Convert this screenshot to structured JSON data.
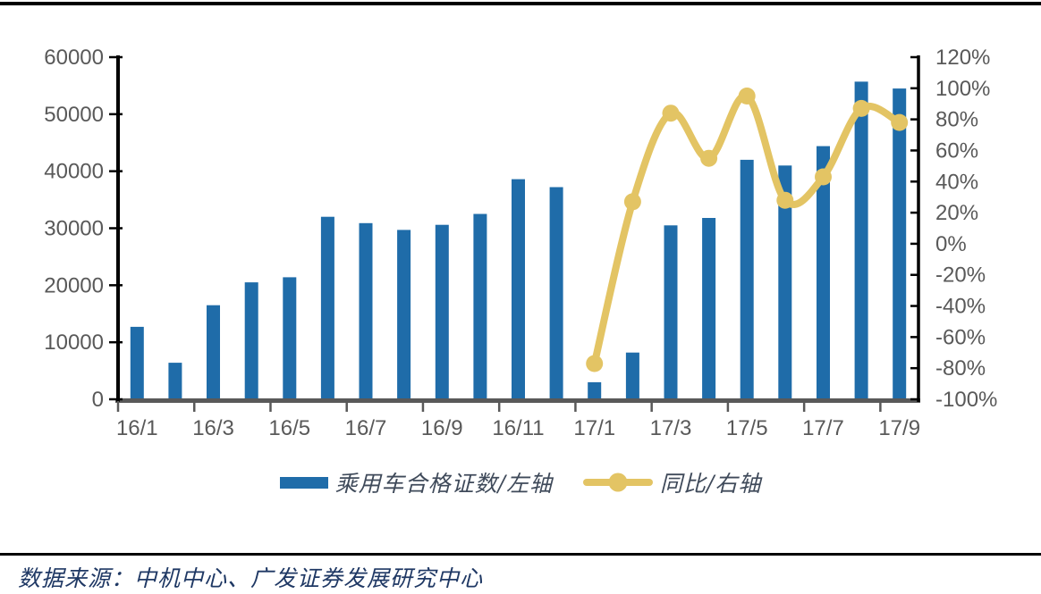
{
  "chart_data": {
    "type": "combo_bar_line",
    "categories": [
      "16/1",
      "16/2",
      "16/3",
      "16/4",
      "16/5",
      "16/6",
      "16/7",
      "16/8",
      "16/9",
      "16/10",
      "16/11",
      "16/12",
      "17/1",
      "17/2",
      "17/3",
      "17/4",
      "17/5",
      "17/6",
      "17/7",
      "17/8",
      "17/9"
    ],
    "x_axis": {
      "label_every": 2,
      "tick_every": 2
    },
    "series": [
      {
        "name": "乘用车合格证数/左轴",
        "type": "bar",
        "yaxis": "left",
        "color": "#1F6CA9",
        "values": [
          12700,
          6400,
          16500,
          20500,
          21400,
          32000,
          30900,
          29700,
          30600,
          32500,
          38600,
          37200,
          3000,
          8200,
          30500,
          31800,
          42000,
          41000,
          44400,
          55700,
          54500
        ]
      },
      {
        "name": "同比/右轴",
        "type": "line",
        "yaxis": "right",
        "unit": "%",
        "color": "#E3C464",
        "values": [
          null,
          null,
          null,
          null,
          null,
          null,
          null,
          null,
          null,
          null,
          null,
          null,
          -77,
          27,
          84,
          55,
          95,
          28,
          43,
          87,
          78
        ]
      }
    ],
    "left_axis": {
      "min": 0,
      "max": 60000,
      "step": 10000,
      "ticks": [
        0,
        10000,
        20000,
        30000,
        40000,
        50000,
        60000
      ]
    },
    "right_axis": {
      "min": -100,
      "max": 120,
      "step": 20,
      "suffix": "%",
      "ticks": [
        -100,
        -80,
        -60,
        -40,
        -20,
        0,
        20,
        40,
        60,
        80,
        100,
        120
      ]
    },
    "grid": false,
    "legend_position": "bottom",
    "title": ""
  },
  "colors": {
    "bar": "#1F6CA9",
    "line": "#E3C464",
    "axis_black": "#000000",
    "axis_gray": "#595959",
    "tick_label": "#595959",
    "legend_text": "#3F4A5A",
    "source_text": "#1F3864",
    "background": "#FFFFFF"
  },
  "source_note": "数据来源：中机中心、广发证券发展研究中心"
}
